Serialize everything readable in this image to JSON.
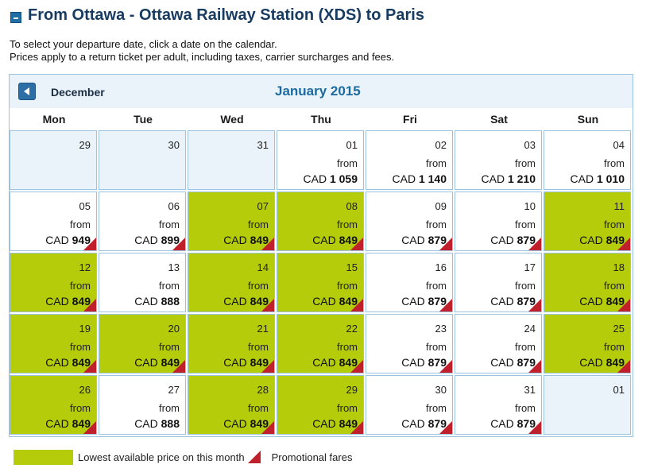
{
  "header": {
    "title": "From Ottawa - Ottawa Railway Station (XDS) to Paris"
  },
  "intro": {
    "line1": "To select your departure date, click a date on the calendar.",
    "line2": "Prices apply to a return ticket per adult, including taxes, carrier surcharges and fees."
  },
  "nav": {
    "prev_label": "December",
    "month_title": "January 2015"
  },
  "weekdays": [
    "Mon",
    "Tue",
    "Wed",
    "Thu",
    "Fri",
    "Sat",
    "Sun"
  ],
  "from_label": "from",
  "currency": "CAD",
  "colors": {
    "lowest": "#b5cc0a",
    "promo": "#c0202b",
    "accent": "#1d6aa0"
  },
  "calendar": {
    "weeks": [
      [
        {
          "day": "29",
          "empty": true
        },
        {
          "day": "30",
          "empty": true
        },
        {
          "day": "31",
          "empty": true
        },
        {
          "day": "01",
          "price": "1 059",
          "low": false,
          "promo": false
        },
        {
          "day": "02",
          "price": "1 140",
          "low": false,
          "promo": false
        },
        {
          "day": "03",
          "price": "1 210",
          "low": false,
          "promo": false
        },
        {
          "day": "04",
          "price": "1 010",
          "low": false,
          "promo": false
        }
      ],
      [
        {
          "day": "05",
          "price": "949",
          "low": false,
          "promo": true
        },
        {
          "day": "06",
          "price": "899",
          "low": false,
          "promo": true
        },
        {
          "day": "07",
          "price": "849",
          "low": true,
          "promo": true
        },
        {
          "day": "08",
          "price": "849",
          "low": true,
          "promo": true
        },
        {
          "day": "09",
          "price": "879",
          "low": false,
          "promo": true
        },
        {
          "day": "10",
          "price": "879",
          "low": false,
          "promo": true
        },
        {
          "day": "11",
          "price": "849",
          "low": true,
          "promo": true
        }
      ],
      [
        {
          "day": "12",
          "price": "849",
          "low": true,
          "promo": true
        },
        {
          "day": "13",
          "price": "888",
          "low": false,
          "promo": false
        },
        {
          "day": "14",
          "price": "849",
          "low": true,
          "promo": true
        },
        {
          "day": "15",
          "price": "849",
          "low": true,
          "promo": true
        },
        {
          "day": "16",
          "price": "879",
          "low": false,
          "promo": true
        },
        {
          "day": "17",
          "price": "879",
          "low": false,
          "promo": true
        },
        {
          "day": "18",
          "price": "849",
          "low": true,
          "promo": true
        }
      ],
      [
        {
          "day": "19",
          "price": "849",
          "low": true,
          "promo": true
        },
        {
          "day": "20",
          "price": "849",
          "low": true,
          "promo": true
        },
        {
          "day": "21",
          "price": "849",
          "low": true,
          "promo": true
        },
        {
          "day": "22",
          "price": "849",
          "low": true,
          "promo": true
        },
        {
          "day": "23",
          "price": "879",
          "low": false,
          "promo": true
        },
        {
          "day": "24",
          "price": "879",
          "low": false,
          "promo": true
        },
        {
          "day": "25",
          "price": "849",
          "low": true,
          "promo": true
        }
      ],
      [
        {
          "day": "26",
          "price": "849",
          "low": true,
          "promo": true
        },
        {
          "day": "27",
          "price": "888",
          "low": false,
          "promo": false
        },
        {
          "day": "28",
          "price": "849",
          "low": true,
          "promo": true
        },
        {
          "day": "29",
          "price": "849",
          "low": true,
          "promo": true
        },
        {
          "day": "30",
          "price": "879",
          "low": false,
          "promo": true
        },
        {
          "day": "31",
          "price": "879",
          "low": false,
          "promo": true
        },
        {
          "day": "01",
          "empty": true
        }
      ]
    ]
  },
  "legend": {
    "lowest_label": "Lowest available price on this month",
    "promo_label": "Promotional fares"
  }
}
